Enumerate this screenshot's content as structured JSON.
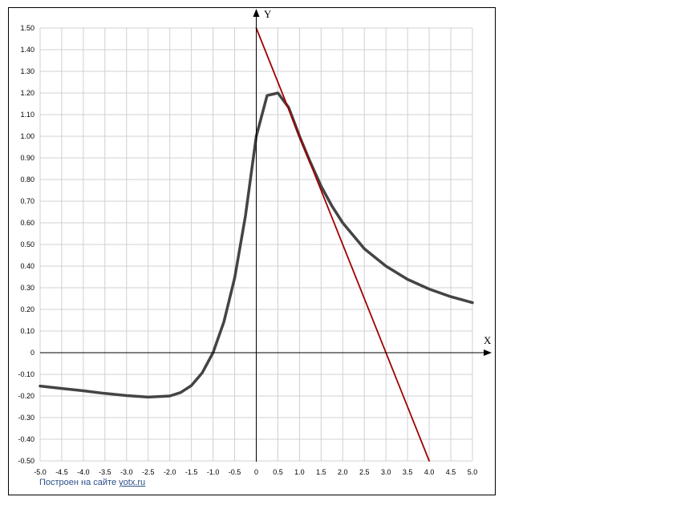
{
  "chart_data": {
    "type": "line",
    "xlabel": "X",
    "ylabel": "Y",
    "xlim": [
      -5,
      5
    ],
    "ylim": [
      -0.5,
      1.5
    ],
    "grid": true,
    "x_ticks": [
      "-5.0",
      "-4.5",
      "-4.0",
      "-3.5",
      "-3.0",
      "-2.5",
      "-2.0",
      "-1.5",
      "-1.0",
      "-0.5",
      "0",
      "0.5",
      "1.0",
      "1.5",
      "2.0",
      "2.5",
      "3.0",
      "3.5",
      "4.0",
      "4.5",
      "5.0"
    ],
    "y_ticks": [
      "1.50",
      "1.40",
      "1.30",
      "1.20",
      "1.10",
      "1.00",
      "0.90",
      "0.80",
      "0.70",
      "0.60",
      "0.50",
      "0.40",
      "0.30",
      "0.20",
      "0.10",
      "0",
      "-0.10",
      "-0.20",
      "-0.30",
      "-0.40",
      "-0.50"
    ],
    "series": [
      {
        "color": "#444444",
        "x": [
          -5.0,
          -4.5,
          -4.0,
          -3.5,
          -3.0,
          -2.5,
          -2.0,
          -1.75,
          -1.5,
          -1.25,
          -1.0,
          -0.75,
          -0.5,
          -0.25,
          0.0,
          0.25,
          0.5,
          0.75,
          1.0,
          1.25,
          1.5,
          1.75,
          2.0,
          2.5,
          3.0,
          3.5,
          4.0,
          4.5,
          5.0
        ],
        "y": [
          -0.154,
          -0.165,
          -0.176,
          -0.188,
          -0.198,
          -0.205,
          -0.2,
          -0.184,
          -0.152,
          -0.093,
          0.0,
          0.142,
          0.346,
          0.632,
          1.0,
          1.188,
          1.2,
          1.133,
          1.0,
          0.88,
          0.769,
          0.678,
          0.6,
          0.48,
          0.4,
          0.339,
          0.294,
          0.259,
          0.231
        ]
      },
      {
        "color": "#a00000",
        "x": [
          0.0,
          4.0
        ],
        "y": [
          1.5,
          -0.5
        ]
      }
    ]
  },
  "credit": {
    "prefix": "Построен на сайте",
    "link": "yotx.ru"
  }
}
